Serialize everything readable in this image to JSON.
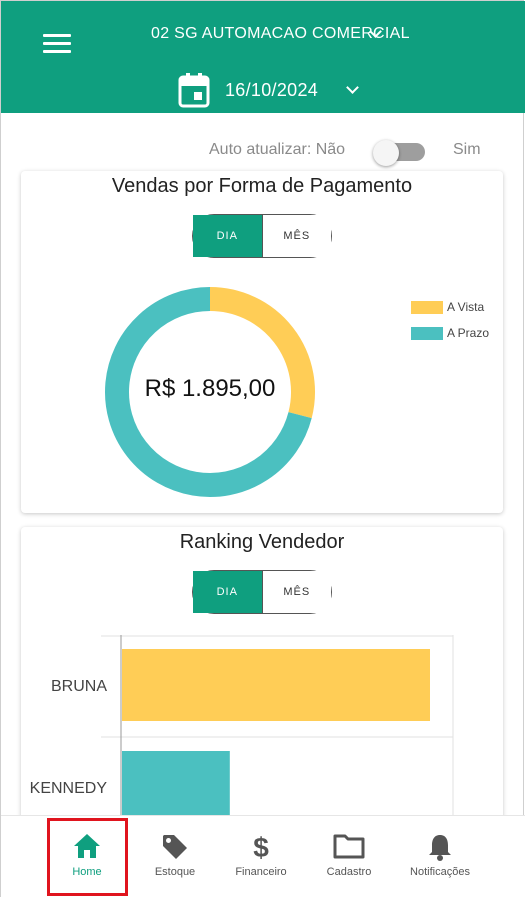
{
  "header": {
    "company": "02 SG AUTOMACAO COMERCIAL",
    "date": "16/10/2024"
  },
  "auto_update": {
    "label": "Auto atualizar: Não",
    "on_label": "Sim",
    "enabled": false
  },
  "sales_card": {
    "title": "Vendas por Forma de Pagamento",
    "toggle": {
      "day": "DIA",
      "month": "MÊS",
      "active": "day"
    },
    "total": "R$ 1.895,00",
    "colors": {
      "a_vista": "#ffcd56",
      "a_prazo": "#4bc0c0"
    }
  },
  "ranking_card": {
    "title": "Ranking Vendedor",
    "toggle": {
      "day": "DIA",
      "month": "MÊS",
      "active": "day"
    }
  },
  "chart_data": [
    {
      "type": "pie",
      "categories": [
        "A Vista",
        "A Prazo"
      ],
      "values": [
        0.29,
        0.71
      ],
      "legend": "right",
      "colors": [
        "#ffcd56",
        "#4bc0c0"
      ]
    },
    {
      "type": "bar",
      "orientation": "horizontal",
      "categories": [
        "BRUNA",
        "KENNEDY"
      ],
      "values": [
        100,
        35
      ],
      "colors": [
        "#ffcd56",
        "#4bc0c0"
      ],
      "grid": true
    }
  ],
  "bottom_nav": [
    {
      "label": "Home",
      "icon": "home-icon",
      "active": true
    },
    {
      "label": "Estoque",
      "icon": "tag-icon",
      "active": false
    },
    {
      "label": "Financeiro",
      "icon": "dollar-icon",
      "active": false
    },
    {
      "label": "Cadastro",
      "icon": "folder-icon",
      "active": false
    },
    {
      "label": "Notificações",
      "icon": "bell-icon",
      "active": false
    }
  ],
  "theme": {
    "primary": "#0f9f7f",
    "highlight_border": "#e0141e"
  }
}
